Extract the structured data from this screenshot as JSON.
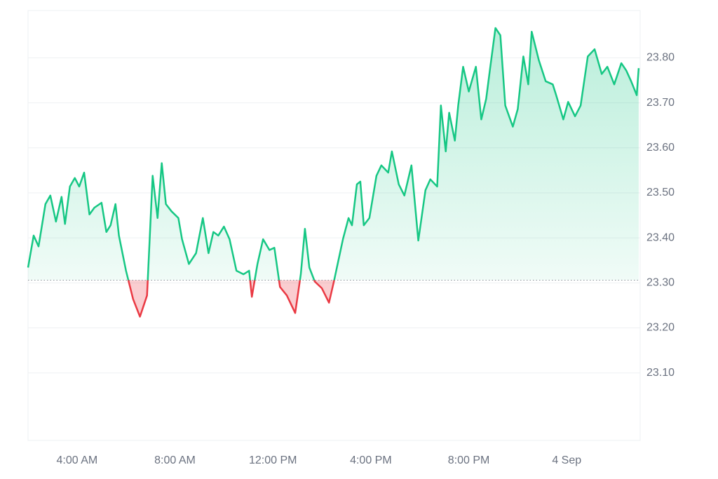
{
  "chart_data": {
    "type": "line",
    "x": [
      2.0,
      2.23,
      2.43,
      2.71,
      2.91,
      3.14,
      3.37,
      3.51,
      3.71,
      3.91,
      4.09,
      4.29,
      4.51,
      4.71,
      5.0,
      5.2,
      5.37,
      5.57,
      5.71,
      6.0,
      6.29,
      6.57,
      6.86,
      7.09,
      7.29,
      7.46,
      7.63,
      7.86,
      8.14,
      8.29,
      8.57,
      8.86,
      9.14,
      9.37,
      9.57,
      9.77,
      10.0,
      10.23,
      10.51,
      10.8,
      11.03,
      11.14,
      11.37,
      11.6,
      11.86,
      12.06,
      12.29,
      12.57,
      12.91,
      13.14,
      13.31,
      13.49,
      13.71,
      14.0,
      14.29,
      14.49,
      14.86,
      15.09,
      15.23,
      15.43,
      15.57,
      15.71,
      15.94,
      16.23,
      16.43,
      16.71,
      16.86,
      17.14,
      17.37,
      17.66,
      17.94,
      18.23,
      18.43,
      18.71,
      18.86,
      19.06,
      19.2,
      19.43,
      19.57,
      19.77,
      20.0,
      20.29,
      20.51,
      20.71,
      20.86,
      21.09,
      21.29,
      21.49,
      21.8,
      22.0,
      22.23,
      22.43,
      22.57,
      22.86,
      23.14,
      23.43,
      23.57,
      23.86,
      24.06,
      24.34,
      24.57,
      24.86,
      25.14,
      25.43,
      25.66,
      25.94,
      26.23,
      26.43,
      26.63,
      26.86,
      26.94
    ],
    "series": [
      {
        "color": "#16c784",
        "below_color": "#ea3943",
        "values": [
          23.334,
          23.405,
          23.381,
          23.475,
          23.494,
          23.436,
          23.491,
          23.431,
          23.514,
          23.533,
          23.514,
          23.545,
          23.452,
          23.467,
          23.478,
          23.413,
          23.428,
          23.475,
          23.405,
          23.327,
          23.264,
          23.225,
          23.272,
          23.538,
          23.444,
          23.566,
          23.475,
          23.459,
          23.444,
          23.397,
          23.342,
          23.366,
          23.444,
          23.366,
          23.413,
          23.405,
          23.425,
          23.397,
          23.327,
          23.319,
          23.327,
          23.269,
          23.342,
          23.397,
          23.373,
          23.378,
          23.291,
          23.272,
          23.233,
          23.319,
          23.42,
          23.334,
          23.303,
          23.288,
          23.256,
          23.303,
          23.397,
          23.444,
          23.428,
          23.519,
          23.525,
          23.428,
          23.444,
          23.538,
          23.561,
          23.545,
          23.592,
          23.519,
          23.494,
          23.561,
          23.394,
          23.506,
          23.53,
          23.514,
          23.694,
          23.592,
          23.678,
          23.616,
          23.694,
          23.78,
          23.725,
          23.78,
          23.663,
          23.709,
          23.772,
          23.866,
          23.85,
          23.694,
          23.647,
          23.686,
          23.803,
          23.741,
          23.858,
          23.795,
          23.748,
          23.741,
          23.717,
          23.663,
          23.702,
          23.67,
          23.694,
          23.803,
          23.819,
          23.764,
          23.78,
          23.741,
          23.788,
          23.772,
          23.748,
          23.717,
          23.777
        ]
      }
    ],
    "reference": 23.306,
    "xlim": [
      2,
      27
    ],
    "xticks": [
      {
        "value": 4,
        "label": "4:00 AM"
      },
      {
        "value": 8,
        "label": "8:00 AM"
      },
      {
        "value": 12,
        "label": "12:00 PM"
      },
      {
        "value": 16,
        "label": "4:00 PM"
      },
      {
        "value": 20,
        "label": "8:00 PM"
      },
      {
        "value": 24,
        "label": "4 Sep"
      }
    ],
    "ylim": [
      22.95,
      23.905
    ],
    "yticks": [
      {
        "value": 23.1,
        "label": "23.10"
      },
      {
        "value": 23.2,
        "label": "23.20"
      },
      {
        "value": 23.3,
        "label": "23.30"
      },
      {
        "value": 23.4,
        "label": "23.40"
      },
      {
        "value": 23.5,
        "label": "23.50"
      },
      {
        "value": 23.6,
        "label": "23.60"
      },
      {
        "value": 23.7,
        "label": "23.70"
      },
      {
        "value": 23.8,
        "label": "23.80"
      }
    ],
    "grid": true
  }
}
